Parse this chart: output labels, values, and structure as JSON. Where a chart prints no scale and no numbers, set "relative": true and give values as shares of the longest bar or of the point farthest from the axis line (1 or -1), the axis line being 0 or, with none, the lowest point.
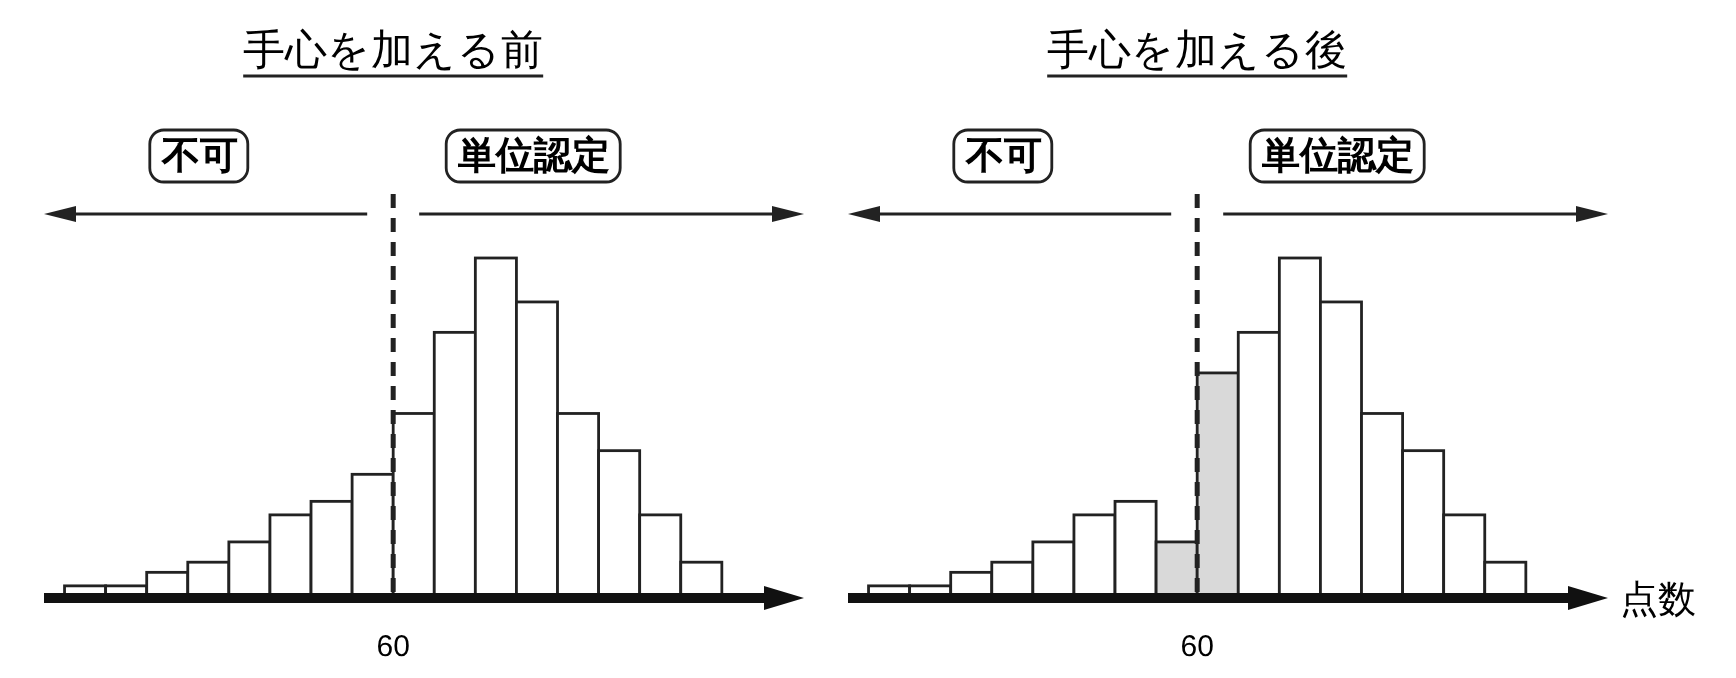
{
  "chart_data": [
    {
      "type": "bar",
      "title": "手心を加える前",
      "relative": true,
      "categories": [
        null,
        null,
        null,
        null,
        null,
        null,
        null,
        null,
        null,
        null,
        null,
        null,
        null,
        null,
        null,
        null
      ],
      "values": [
        0.03,
        0.03,
        0.07,
        0.1,
        0.16,
        0.24,
        0.28,
        0.36,
        0.54,
        0.78,
        1,
        0.87,
        0.54,
        0.43,
        0.24,
        0.1
      ],
      "colors": [
        "#ffffff",
        "#ffffff",
        "#ffffff",
        "#ffffff",
        "#ffffff",
        "#ffffff",
        "#ffffff",
        "#ffffff",
        "#ffffff",
        "#ffffff",
        "#ffffff",
        "#ffffff",
        "#ffffff",
        "#ffffff",
        "#ffffff",
        "#ffffff"
      ],
      "annotations": [
        "60",
        "不可",
        "単位認定"
      ]
    },
    {
      "type": "bar",
      "title": "手心を加える後",
      "xlabel": "点数",
      "relative": true,
      "categories": [
        null,
        null,
        null,
        null,
        null,
        null,
        null,
        null,
        null,
        null,
        null,
        null,
        null,
        null,
        null,
        null
      ],
      "values": [
        0.03,
        0.03,
        0.07,
        0.1,
        0.16,
        0.24,
        0.28,
        0.16,
        0.66,
        0.78,
        1,
        0.87,
        0.54,
        0.43,
        0.24,
        0.1
      ],
      "colors": [
        "#ffffff",
        "#ffffff",
        "#ffffff",
        "#ffffff",
        "#ffffff",
        "#ffffff",
        "#ffffff",
        "#d9d9d9",
        "#d9d9d9",
        "#ffffff",
        "#ffffff",
        "#ffffff",
        "#ffffff",
        "#ffffff",
        "#ffffff",
        "#ffffff"
      ],
      "annotations": [
        "60",
        "不可",
        "単位認定"
      ]
    }
  ]
}
